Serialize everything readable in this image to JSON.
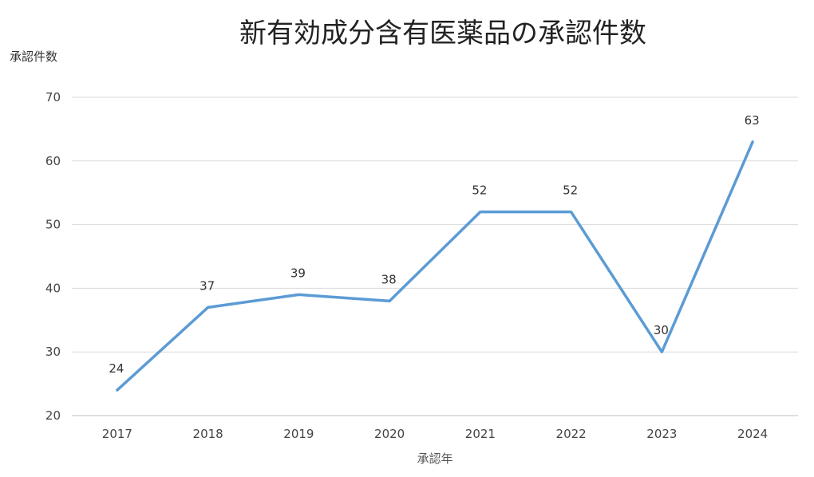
{
  "chart_data": {
    "type": "line",
    "title": "新有効成分含有医薬品の承認件数",
    "xlabel": "承認年",
    "ylabel": "承認件数",
    "categories": [
      "2017",
      "2018",
      "2019",
      "2020",
      "2021",
      "2022",
      "2023",
      "2024"
    ],
    "series": [
      {
        "values": [
          24,
          37,
          39,
          38,
          52,
          52,
          30,
          63
        ]
      }
    ],
    "ylim": [
      20,
      70
    ],
    "yticks": [
      20,
      30,
      40,
      50,
      60,
      70
    ],
    "grid": true,
    "legend": "none",
    "data_labels": true,
    "colors": {
      "line": "#5b9bd5",
      "grid": "#d9d9d9"
    }
  }
}
